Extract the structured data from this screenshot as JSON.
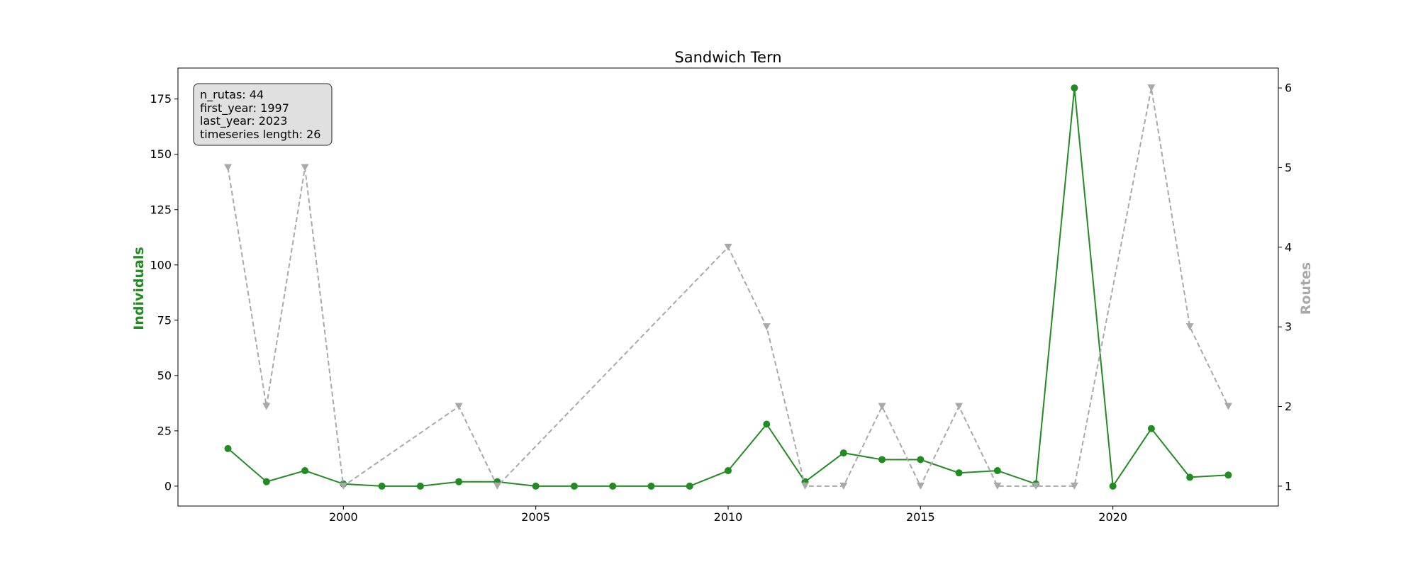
{
  "chart_data": {
    "type": "line",
    "title": "Sandwich Tern",
    "xlabel": "",
    "ylabel_left": "Individuals",
    "ylabel_right": "Routes",
    "x_ticks": [
      2000,
      2005,
      2010,
      2015,
      2020
    ],
    "y_left_ticks": [
      0,
      25,
      50,
      75,
      100,
      125,
      150,
      175
    ],
    "y_right_ticks": [
      1,
      2,
      3,
      4,
      5,
      6
    ],
    "xlim": [
      1995.7,
      2024.3
    ],
    "y_left_lim": [
      -9,
      189
    ],
    "y_right_lim": [
      0.75,
      6.25
    ],
    "grid": false,
    "colors": {
      "individuals": "#228b22",
      "routes": "#a9a9a9"
    },
    "info_box": [
      "n_rutas: 44",
      "first_year: 1997",
      "last_year: 2023",
      "timeseries length: 26"
    ],
    "series": [
      {
        "axis": "left",
        "style": "solid-circle",
        "x": [
          1997,
          1998,
          1999,
          2000,
          2001,
          2002,
          2003,
          2004,
          2005,
          2006,
          2007,
          2008,
          2009,
          2010,
          2011,
          2012,
          2013,
          2014,
          2015,
          2016,
          2017,
          2018,
          2019,
          2020,
          2021,
          2022,
          2023
        ],
        "values": [
          17,
          2,
          7,
          1,
          0,
          0,
          2,
          2,
          0,
          0,
          0,
          0,
          0,
          7,
          28,
          2,
          15,
          12,
          12,
          6,
          7,
          1,
          180,
          0,
          26,
          4,
          5
        ]
      },
      {
        "axis": "right",
        "style": "dashed-triangle",
        "x": [
          1997,
          1998,
          1999,
          2000,
          2003,
          2004,
          2010,
          2011,
          2012,
          2013,
          2014,
          2015,
          2016,
          2017,
          2018,
          2019,
          2021,
          2022,
          2023
        ],
        "values": [
          5,
          2,
          5,
          1,
          2,
          1,
          4,
          3,
          1,
          1,
          2,
          1,
          2,
          1,
          1,
          1,
          6,
          3,
          2
        ]
      }
    ]
  }
}
